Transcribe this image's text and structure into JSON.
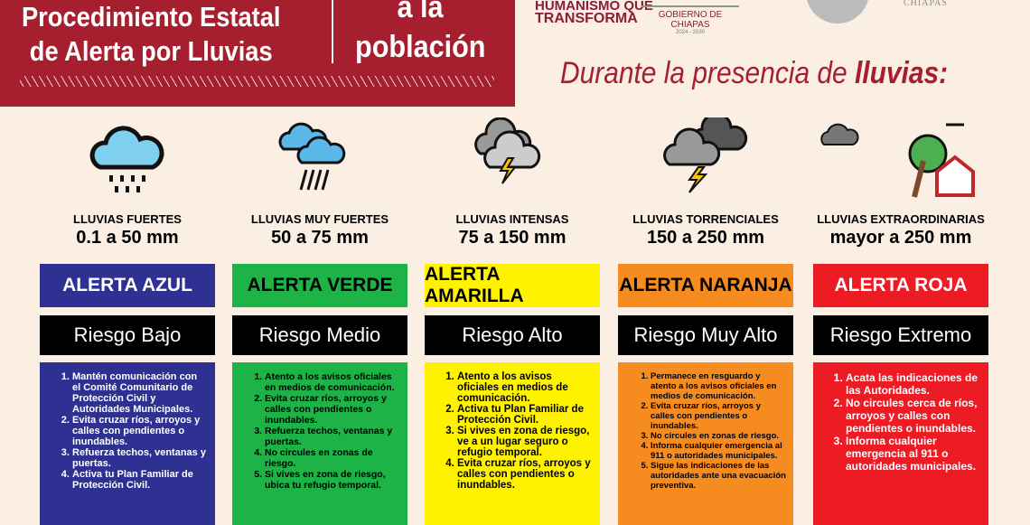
{
  "header": {
    "title_line1": "Procedimiento Estatal",
    "title_line2": "de Alerta por Lluvias",
    "subtitle_top": "a la",
    "subtitle": "población"
  },
  "logos": {
    "humanismo_line1": "HUMANISMO QUE",
    "humanismo_line2": "TRANSFORMA",
    "gobierno": "GOBIERNO DE CHIAPAS",
    "years": "2024 - 2030",
    "chiapas": "CHIAPAS"
  },
  "during": {
    "text": "Durante la presencia de ",
    "bold": "lluvias:"
  },
  "colors": {
    "maroon": "#a51f2e",
    "blue": "#2e3192",
    "green": "#1db347",
    "yellow": "#fff200",
    "orange": "#f68b1f",
    "red": "#ed1c24"
  },
  "columns": [
    {
      "icon": "rain-cloud-icon",
      "level": "LLUVIAS FUERTES",
      "range": "0.1 a 50 mm",
      "alert": "ALERTA AZUL",
      "risk": "Riesgo Bajo",
      "bg": "#2e3192",
      "fg": "#ffffff",
      "items": [
        "Mantén comunicación con el Comité Comunitario de Protección Civil y Autoridades Municipales.",
        "Evita cruzar ríos, arroyos y calles con pendientes o inundables.",
        "Refuerza techos, ventanas y puertas.",
        "Activa tu Plan Familiar de Protección Civil."
      ],
      "fs": 11
    },
    {
      "icon": "heavy-rain-clouds-icon",
      "level": "LLUVIAS MUY FUERTES",
      "range": "50 a 75 mm",
      "alert": "ALERTA VERDE",
      "risk": "Riesgo Medio",
      "bg": "#1db347",
      "fg": "#000000",
      "items": [
        "Atento a los avisos oficiales en medios de comunicación.",
        "Evita cruzar ríos, arroyos y calles con pendientes o inundables.",
        "Refuerza techos, ventanas y puertas.",
        "No circules en zonas de riesgo.",
        "Si vives en zona de riesgo, ubica tu refugio temporal."
      ],
      "fs": 10.5
    },
    {
      "icon": "storm-cloud-icon",
      "level": "LLUVIAS INTENSAS",
      "range": "75 a 150 mm",
      "alert": "ALERTA AMARILLA",
      "risk": "Riesgo Alto",
      "bg": "#fff200",
      "fg": "#000000",
      "items": [
        "Atento a los avisos oficiales en medios de comunicación.",
        "Activa tu Plan Familiar de Protección Civil.",
        "Si vives en zona de riesgo, ve a un lugar seguro o refugio temporal.",
        "Evita cruzar ríos, arroyos y calles con pendientes o inundables."
      ],
      "fs": 11.5
    },
    {
      "icon": "thunderstorm-icon",
      "level": "LLUVIAS TORRENCIALES",
      "range": "150 a 250 mm",
      "alert": "ALERTA NARANJA",
      "risk": "Riesgo Muy Alto",
      "bg": "#f68b1f",
      "fg": "#000000",
      "items": [
        "Permanece en resguardo y atento a los avisos oficiales en medios de comunicación.",
        "Evita cruzar ríos, arroyos y calles con pendientes o inundables.",
        "No circules en zonas de riesgo.",
        "Informa cualquier emergencia al 911 o autoridades municipales.",
        "Sigue las indicaciones de las autoridades ante una evacuación preventiva."
      ],
      "fs": 9.5
    },
    {
      "icon": "hurricane-house-icon",
      "level": "LLUVIAS EXTRAORDINARIAS",
      "range": "mayor a 250 mm",
      "alert": "ALERTA ROJA",
      "risk": "Riesgo Extremo",
      "bg": "#ed1c24",
      "fg": "#ffffff",
      "items": [
        "Acata las indicaciones de las Autoridades.",
        "No circules cerca de ríos, arroyos y calles con pendientes o inundables.",
        "Informa cualquier emergencia al 911 o autoridades municipales."
      ],
      "fs": 12
    }
  ]
}
